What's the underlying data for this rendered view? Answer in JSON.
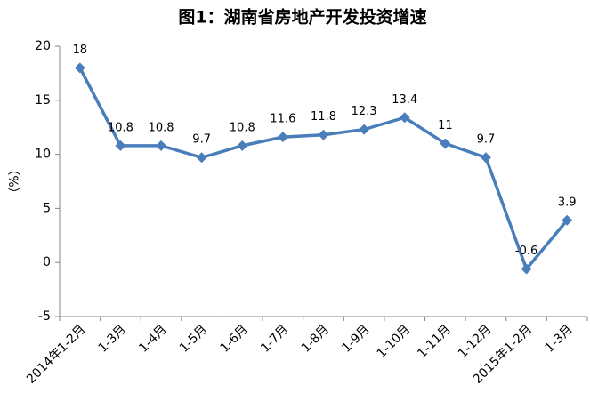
{
  "chart_data": {
    "type": "line",
    "title": "图1：湖南省房地产开发投资增速",
    "y_label": "（%）",
    "categories": [
      "2014年1-2月",
      "1-3月",
      "1-4月",
      "1-5月",
      "1-6月",
      "1-7月",
      "1-8月",
      "1-9月",
      "1-10月",
      "1-11月",
      "1-12月",
      "2015年1-2月",
      "1-3月"
    ],
    "series": [
      {
        "name": "湖南省房地产开发投资增速",
        "color": "#4a7ebb",
        "values": [
          18,
          10.8,
          10.8,
          9.7,
          10.8,
          11.6,
          11.8,
          12.3,
          13.4,
          11,
          9.7,
          -0.6,
          3.9
        ]
      }
    ],
    "ylim": [
      -5,
      20
    ],
    "yticks": [
      -5,
      0,
      5,
      10,
      15,
      20
    ],
    "grid": false
  }
}
